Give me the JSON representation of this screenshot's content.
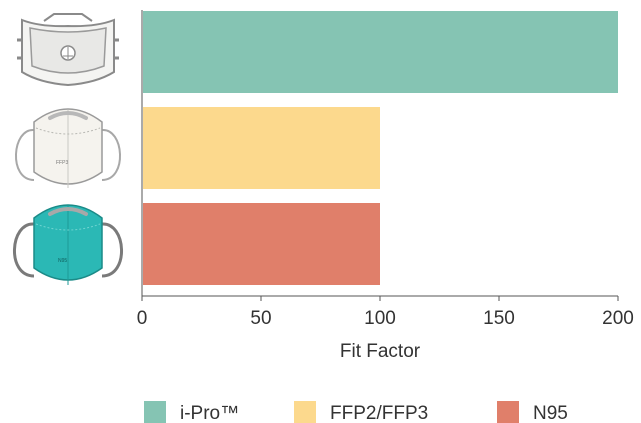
{
  "chart_data": {
    "type": "bar",
    "orientation": "horizontal",
    "categories": [
      "i-Pro™",
      "FFP2/FFP3",
      "N95"
    ],
    "values": [
      200,
      100,
      100
    ],
    "colors": [
      "#85c4b3",
      "#fcd98d",
      "#e07f6a"
    ],
    "xlabel": "Fit Factor",
    "ylabel": "",
    "xlim": [
      0,
      200
    ],
    "xticks": [
      0,
      50,
      100,
      150,
      200
    ],
    "grid": false,
    "legend_position": "bottom",
    "category_icons": [
      "ipro-mask-icon",
      "ffp-mask-icon",
      "n95-mask-icon"
    ]
  },
  "icons": {
    "ffp_mask_text": "FFP3",
    "n95_mask_text": "N95"
  }
}
